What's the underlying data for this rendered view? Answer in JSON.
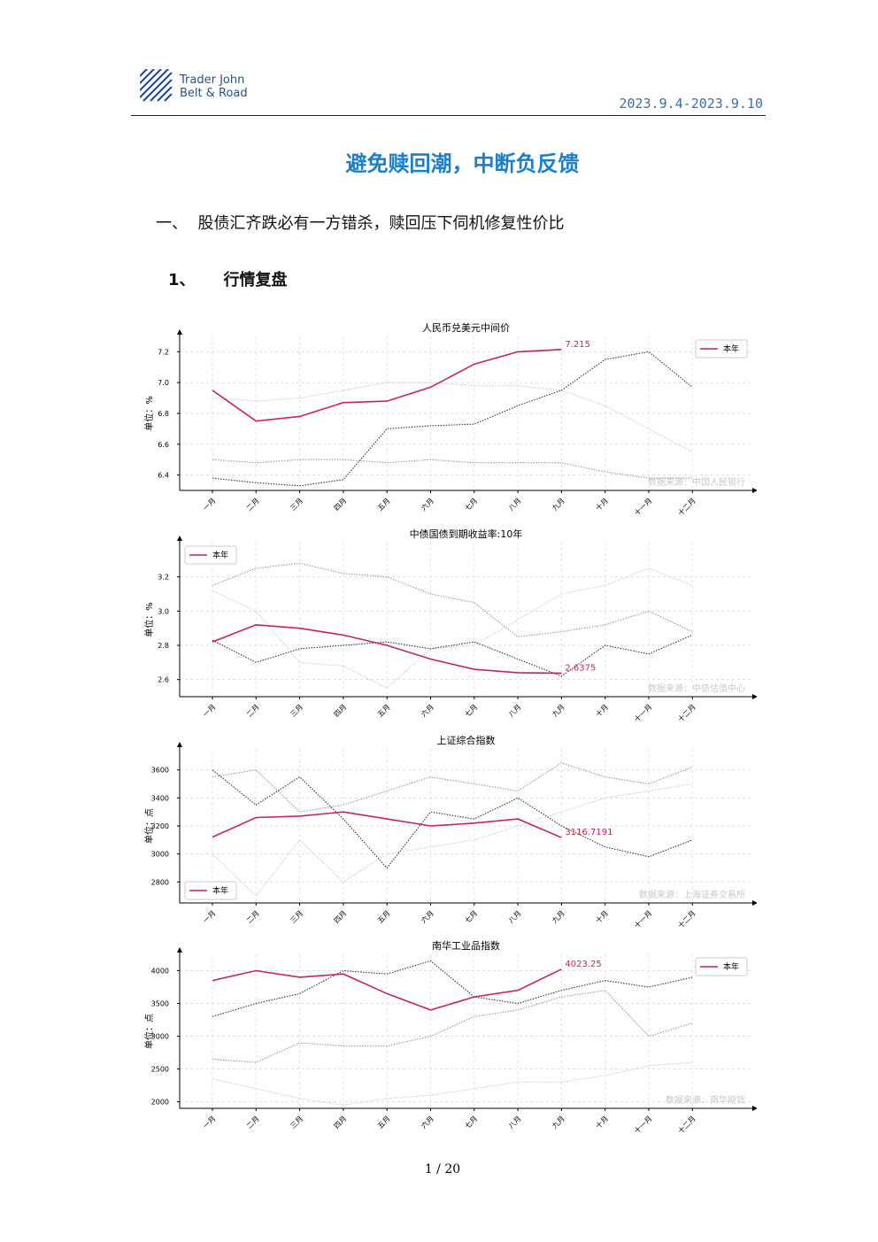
{
  "header": {
    "logo_line1": "Trader John",
    "logo_line2": "Belt & Road",
    "date": "2023.9.4-2023.9.10"
  },
  "title": "避免赎回潮，中断负反馈",
  "section": {
    "number": "一、",
    "text": "股债汇齐跌必有一方错杀，赎回压下伺机修复性价比"
  },
  "subsection": {
    "number": "1、",
    "text": "行情复盘"
  },
  "chart_data": [
    {
      "type": "line",
      "title": "人民币兑美元中间价",
      "y_label": "单位：%",
      "source": "数据来源：中国人民银行",
      "categories": [
        "一月",
        "二月",
        "三月",
        "四月",
        "五月",
        "六月",
        "七月",
        "八月",
        "九月",
        "十月",
        "十一月",
        "十二月"
      ],
      "series": [
        {
          "color": "#cccccc",
          "values": [
            6.9,
            6.88,
            6.9,
            6.95,
            7.0,
            7.0,
            6.98,
            6.98,
            6.95,
            6.85,
            6.7,
            6.55
          ]
        },
        {
          "color": "#999999",
          "values": [
            6.5,
            6.48,
            6.5,
            6.5,
            6.48,
            6.5,
            6.48,
            6.48,
            6.48,
            6.42,
            6.38,
            6.38
          ]
        },
        {
          "color": "#333333",
          "values": [
            6.38,
            6.35,
            6.33,
            6.37,
            6.7,
            6.72,
            6.73,
            6.85,
            6.95,
            7.15,
            7.2,
            6.97
          ]
        },
        {
          "name": "本年",
          "color": "#c8254f",
          "values": [
            6.95,
            6.75,
            6.78,
            6.87,
            6.88,
            6.97,
            7.12,
            7.2,
            7.215,
            null,
            null,
            null
          ]
        }
      ],
      "ylim": [
        6.3,
        7.3
      ],
      "yticks": [
        6.4,
        6.6,
        6.8,
        {
          "value": 7,
          "label": "7.0"
        },
        7.2
      ],
      "grid": true,
      "legend": "upper right"
    },
    {
      "type": "line",
      "title": "中债国债到期收益率:10年",
      "y_label": "单位：%",
      "source": "数据来源：中债估值中心",
      "categories": [
        "一月",
        "二月",
        "三月",
        "四月",
        "五月",
        "六月",
        "七月",
        "八月",
        "九月",
        "十月",
        "十一月",
        "十二月"
      ],
      "series": [
        {
          "color": "#cccccc",
          "values": [
            3.12,
            3.0,
            2.7,
            2.68,
            2.55,
            2.78,
            2.8,
            2.95,
            3.1,
            3.15,
            3.25,
            3.15
          ]
        },
        {
          "color": "#999999",
          "values": [
            3.15,
            3.25,
            3.28,
            3.22,
            3.2,
            3.1,
            3.05,
            2.85,
            2.88,
            2.92,
            3.0,
            2.88
          ]
        },
        {
          "color": "#333333",
          "values": [
            2.83,
            2.7,
            2.78,
            2.8,
            2.82,
            2.78,
            2.82,
            2.72,
            2.62,
            2.8,
            2.75,
            2.86
          ]
        },
        {
          "name": "本年",
          "color": "#c8254f",
          "values": [
            2.82,
            2.92,
            2.9,
            2.86,
            2.8,
            2.72,
            2.66,
            2.64,
            2.6375,
            null,
            null,
            null
          ]
        }
      ],
      "ylim": [
        2.5,
        3.4
      ],
      "yticks": [
        2.6,
        2.8,
        {
          "value": 3,
          "label": "3.0"
        },
        3.2
      ],
      "grid": true,
      "legend": "upper left"
    },
    {
      "type": "line",
      "title": "上证综合指数",
      "y_label": "单位：点",
      "source": "数据来源：上海证券交易所",
      "categories": [
        "一月",
        "二月",
        "三月",
        "四月",
        "五月",
        "六月",
        "七月",
        "八月",
        "九月",
        "十月",
        "十一月",
        "十二月"
      ],
      "series": [
        {
          "color": "#cccccc",
          "values": [
            3000,
            2700,
            3100,
            2800,
            3000,
            3050,
            3100,
            3200,
            3300,
            3400,
            3450,
            3500
          ]
        },
        {
          "color": "#999999",
          "values": [
            3550,
            3600,
            3300,
            3350,
            3450,
            3550,
            3500,
            3450,
            3650,
            3550,
            3500,
            3620
          ]
        },
        {
          "color": "#333333",
          "values": [
            3600,
            3350,
            3550,
            3250,
            2900,
            3300,
            3250,
            3400,
            3200,
            3050,
            2980,
            3100
          ]
        },
        {
          "name": "本年",
          "color": "#c8254f",
          "values": [
            3120,
            3260,
            3270,
            3300,
            3250,
            3200,
            3220,
            3250,
            3116.7191,
            null,
            null,
            null
          ]
        }
      ],
      "ylim": [
        2650,
        3750
      ],
      "yticks": [
        2800,
        3000,
        3200,
        3400,
        3600
      ],
      "grid": true,
      "legend": "lower left"
    },
    {
      "type": "line",
      "title": "南华工业品指数",
      "y_label": "单位：点",
      "source": "数据来源：南华期货",
      "categories": [
        "一月",
        "二月",
        "三月",
        "四月",
        "五月",
        "六月",
        "七月",
        "八月",
        "九月",
        "十月",
        "十一月",
        "十二月"
      ],
      "series": [
        {
          "color": "#cccccc",
          "values": [
            2350,
            2200,
            2050,
            1950,
            2050,
            2100,
            2200,
            2300,
            2300,
            2400,
            2550,
            2600
          ]
        },
        {
          "color": "#999999",
          "values": [
            2650,
            2600,
            2900,
            2850,
            2850,
            3000,
            3300,
            3400,
            3600,
            3700,
            3000,
            3200
          ]
        },
        {
          "color": "#333333",
          "values": [
            3300,
            3500,
            3650,
            4000,
            3950,
            4150,
            3600,
            3500,
            3700,
            3850,
            3750,
            3900
          ]
        },
        {
          "name": "本年",
          "color": "#c8254f",
          "values": [
            3850,
            4000,
            3900,
            3950,
            3650,
            3400,
            3600,
            3700,
            4023.25,
            null,
            null,
            null
          ]
        }
      ],
      "ylim": [
        1900,
        4250
      ],
      "yticks": [
        2000,
        2500,
        3000,
        3500,
        4000
      ],
      "grid": true,
      "legend": "upper right"
    }
  ],
  "footer": {
    "page": "1 / 20"
  }
}
